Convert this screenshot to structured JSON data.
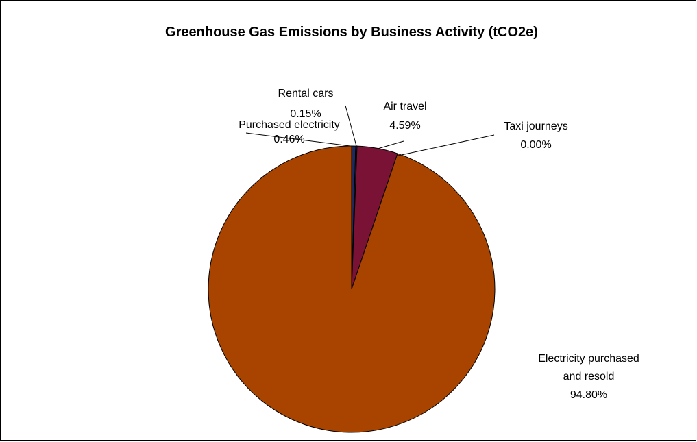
{
  "chart_data": {
    "type": "pie",
    "title": "Greenhouse Gas Emissions by Business Activity (tCO2e)",
    "start_angle_deg": 0,
    "direction": "clockwise",
    "slices": [
      {
        "label": "Purchased electricity",
        "value": 0.46,
        "value_label": "0.46%",
        "color": "#1F2A5C"
      },
      {
        "label": "Rental cars",
        "value": 0.15,
        "value_label": "0.15%",
        "color": "#1F2A5C"
      },
      {
        "label": "Air travel",
        "value": 4.59,
        "value_label": "4.59%",
        "color": "#7A1236"
      },
      {
        "label": "Taxi journeys",
        "value": 0.0,
        "value_label": "0.00%",
        "color": "#7A1236"
      },
      {
        "label": "Electricity purchased and resold",
        "value": 94.8,
        "value_label": "94.80%",
        "color": "#A84400"
      }
    ],
    "slice_border_color": "#000000",
    "legend": "none"
  }
}
